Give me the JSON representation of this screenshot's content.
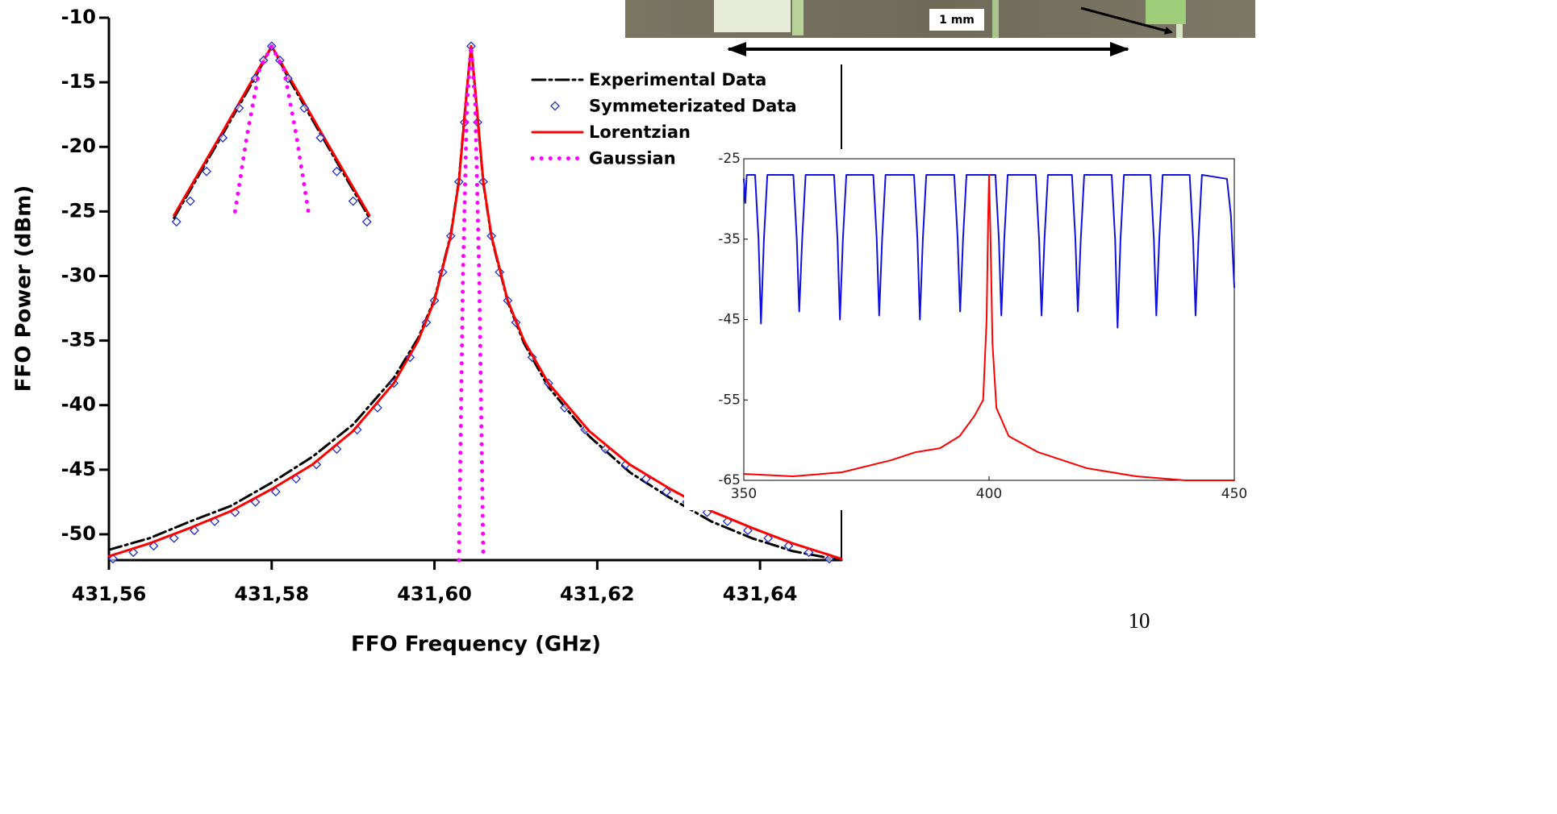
{
  "chart_data": [
    {
      "type": "line",
      "xlabel": "FFO Frequency (GHz)",
      "ylabel": "FFO Power (dBm)",
      "xlim": [
        431.56,
        431.65
      ],
      "ylim": [
        -52,
        -10
      ],
      "xticks": [
        {
          "value": 431.56,
          "label": "431,56"
        },
        {
          "value": 431.58,
          "label": "431,58"
        },
        {
          "value": 431.6,
          "label": "431,60"
        },
        {
          "value": 431.62,
          "label": "431,62"
        },
        {
          "value": 431.64,
          "label": "431,64"
        }
      ],
      "yticks": [
        -10,
        -15,
        -20,
        -25,
        -30,
        -35,
        -40,
        -45,
        -50
      ],
      "legend": "upper right",
      "series": [
        {
          "name": "Experimental Data",
          "color": "#000000",
          "style": "dashdot",
          "x": [
            431.56,
            431.565,
            431.57,
            431.575,
            431.58,
            431.585,
            431.59,
            431.595,
            431.598,
            431.6,
            431.602,
            431.603,
            431.604,
            431.6045,
            431.605,
            431.606,
            431.607,
            431.609,
            431.611,
            431.614,
            431.619,
            431.624,
            431.629,
            431.634,
            431.639,
            431.644,
            431.649,
            431.65
          ],
          "values": [
            -51.2,
            -50.3,
            -49.0,
            -47.8,
            -46.0,
            -44.0,
            -41.5,
            -37.9,
            -34.8,
            -31.8,
            -26.8,
            -22.6,
            -15.4,
            -12.2,
            -15.6,
            -22.8,
            -27.0,
            -32.0,
            -35.2,
            -38.6,
            -42.4,
            -45.2,
            -47.2,
            -49.0,
            -50.3,
            -51.3,
            -51.9,
            -52.0
          ]
        },
        {
          "name": "Symmeterizated Data",
          "color": "#1f2fd0",
          "style": "markers",
          "x": [
            431.5605,
            431.563,
            431.5655,
            431.568,
            431.5705,
            431.573,
            431.5755,
            431.578,
            431.5805,
            431.583,
            431.5855,
            431.588,
            431.5905,
            431.593,
            431.595,
            431.597,
            431.599,
            431.6,
            431.601,
            431.602,
            431.603,
            431.6037,
            431.6045,
            431.6053,
            431.606,
            431.607,
            431.608,
            431.609,
            431.61,
            431.612,
            431.614,
            431.616,
            431.6185,
            431.621,
            431.6235,
            431.626,
            431.6285,
            431.631,
            431.6335,
            431.636,
            431.6385,
            431.641,
            431.6435,
            431.646,
            431.6485
          ],
          "values": [
            -51.9,
            -51.4,
            -50.9,
            -50.3,
            -49.7,
            -49.0,
            -48.3,
            -47.5,
            -46.7,
            -45.7,
            -44.6,
            -43.4,
            -41.9,
            -40.2,
            -38.3,
            -36.3,
            -33.6,
            -31.9,
            -29.7,
            -26.9,
            -22.7,
            -18.1,
            -12.2,
            -18.1,
            -22.7,
            -26.9,
            -29.7,
            -31.9,
            -33.6,
            -36.3,
            -38.3,
            -40.2,
            -41.9,
            -43.4,
            -44.6,
            -45.7,
            -46.7,
            -47.5,
            -48.3,
            -49.0,
            -49.7,
            -50.3,
            -50.9,
            -51.4,
            -51.9
          ]
        },
        {
          "name": "Lorentzian",
          "color": "#ff0000",
          "style": "solid",
          "x": [
            431.56,
            431.565,
            431.57,
            431.575,
            431.58,
            431.585,
            431.59,
            431.595,
            431.598,
            431.6,
            431.602,
            431.603,
            431.604,
            431.6045,
            431.605,
            431.606,
            431.607,
            431.609,
            431.611,
            431.614,
            431.619,
            431.624,
            431.629,
            431.634,
            431.639,
            431.644,
            431.649,
            431.65
          ],
          "values": [
            -51.7,
            -50.7,
            -49.5,
            -48.2,
            -46.5,
            -44.6,
            -42.0,
            -38.3,
            -35.0,
            -31.9,
            -26.9,
            -22.7,
            -15.5,
            -12.2,
            -15.5,
            -22.7,
            -26.9,
            -31.9,
            -35.0,
            -38.3,
            -42.0,
            -44.6,
            -46.5,
            -48.2,
            -49.5,
            -50.7,
            -51.7,
            -51.9
          ]
        },
        {
          "name": "Gaussian",
          "color": "#ff00ff",
          "style": "dotted",
          "x": [
            431.603,
            431.6035,
            431.604,
            431.6045,
            431.605,
            431.6055,
            431.606
          ],
          "values": [
            -52,
            -30,
            -16.6,
            -12.2,
            -16.6,
            -30,
            -52
          ]
        }
      ]
    },
    {
      "type": "line",
      "xlim": [
        431.56,
        431.65
      ],
      "ylim": [
        -52,
        -10
      ],
      "series": [
        {
          "color": "#000000",
          "style": "dashdot",
          "x": [
            431.568,
            431.574,
            431.578,
            431.58,
            431.582,
            431.586,
            431.592
          ],
          "values": [
            -25.5,
            -19.0,
            -14.6,
            -12.2,
            -14.6,
            -19.0,
            -25.5
          ]
        },
        {
          "color": "#ff0000",
          "style": "solid",
          "x": [
            431.568,
            431.574,
            431.578,
            431.58,
            431.582,
            431.586,
            431.592
          ],
          "values": [
            -25.3,
            -18.8,
            -14.4,
            -12.2,
            -14.4,
            -18.8,
            -25.3
          ]
        },
        {
          "color": "#1f2fd0",
          "style": "markers",
          "x": [
            431.5683,
            431.57,
            431.572,
            431.574,
            431.576,
            431.578,
            431.579,
            431.58,
            431.581,
            431.582,
            431.584,
            431.586,
            431.588,
            431.59,
            431.5917
          ],
          "values": [
            -25.8,
            -24.2,
            -21.9,
            -19.3,
            -17.0,
            -14.7,
            -13.3,
            -12.2,
            -13.3,
            -14.7,
            -17.0,
            -19.3,
            -21.9,
            -24.2,
            -25.8
          ]
        },
        {
          "color": "#ff00ff",
          "style": "dotted",
          "x": [
            431.5755,
            431.577,
            431.5785,
            431.58,
            431.5815,
            431.583,
            431.5845
          ],
          "values": [
            -25,
            -19,
            -14,
            -12.2,
            -14,
            -19,
            -25
          ]
        }
      ]
    },
    {
      "type": "line",
      "xlim": [
        350,
        450
      ],
      "ylim": [
        -65,
        -25
      ],
      "xticks": [
        350,
        400,
        450
      ],
      "yticks": [
        -25,
        -35,
        -45,
        -55,
        -65
      ],
      "series": [
        {
          "color": "#1010e0",
          "style": "solid",
          "x": [
            350,
            350.3,
            350.6,
            352.3,
            353.0,
            353.5,
            354.1,
            354.8,
            360.1,
            360.8,
            361.3,
            361.9,
            362.6,
            368.4,
            369.1,
            369.6,
            370.2,
            370.9,
            376.4,
            377.1,
            377.6,
            378.2,
            378.9,
            384.7,
            385.4,
            385.9,
            386.5,
            387.2,
            392.9,
            393.6,
            394.1,
            394.7,
            395.4,
            401.3,
            402.0,
            402.5,
            403.1,
            403.8,
            409.5,
            410.2,
            410.7,
            411.3,
            412.0,
            416.9,
            417.6,
            418.1,
            418.7,
            419.4,
            425.0,
            425.7,
            426.2,
            426.8,
            427.5,
            432.9,
            433.6,
            434.1,
            434.7,
            435.4,
            440.9,
            441.6,
            442.1,
            442.7,
            443.4,
            448.5,
            449.3,
            450
          ],
          "values": [
            -27.5,
            -30.5,
            -27,
            -27,
            -35,
            -45.5,
            -35,
            -27,
            -27,
            -35,
            -44,
            -35,
            -27,
            -27,
            -35,
            -45,
            -35,
            -27,
            -27,
            -35,
            -44.5,
            -35,
            -27,
            -27,
            -35,
            -45,
            -35,
            -27,
            -27,
            -35,
            -44,
            -35,
            -27,
            -27,
            -35,
            -44.5,
            -35,
            -27,
            -27,
            -35,
            -44.5,
            -35,
            -27,
            -27,
            -35,
            -44,
            -35,
            -27,
            -27,
            -35,
            -46,
            -35,
            -27,
            -27,
            -35,
            -44.5,
            -35,
            -27,
            -27,
            -35,
            -44.5,
            -35,
            -27,
            -27.5,
            -32,
            -41
          ]
        },
        {
          "color": "#ff0000",
          "style": "solid",
          "x": [
            350,
            360,
            370,
            380,
            385,
            390,
            394,
            397,
            398.8,
            399.5,
            399.8,
            400,
            400.3,
            400.7,
            401.5,
            404,
            410,
            415,
            420,
            430,
            440,
            450
          ],
          "values": [
            -64.2,
            -64.5,
            -64,
            -62.5,
            -61.5,
            -61,
            -59.5,
            -57,
            -55,
            -45,
            -33,
            -27,
            -35,
            -48,
            -56,
            -59.5,
            -61.5,
            -62.5,
            -63.5,
            -64.5,
            -65,
            -65
          ]
        }
      ]
    }
  ],
  "photo": {
    "scale_label": "1 mm"
  },
  "page_number": "10"
}
